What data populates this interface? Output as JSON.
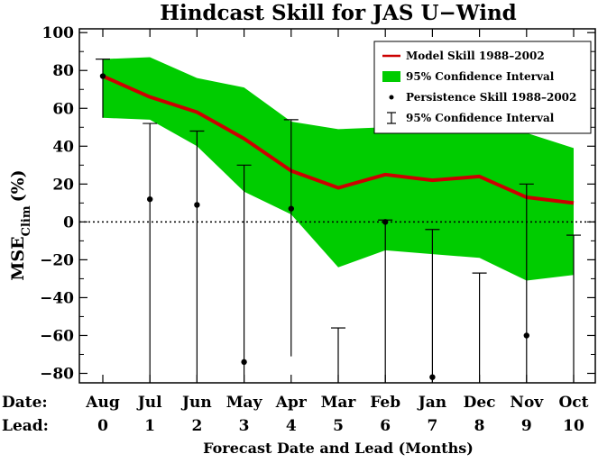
{
  "chart_data": {
    "type": "line",
    "title": "Hindcast Skill for JAS U−Wind",
    "xlabel": "Forecast Date and Lead (Months)",
    "ylabel": "MSE",
    "ylabel_sub": "Clim",
    "ylabel_unit": "(%)",
    "ylim": [
      -85,
      102
    ],
    "yticks": [
      -80,
      -60,
      -40,
      -20,
      0,
      20,
      40,
      60,
      80,
      100
    ],
    "ytick_labels": [
      "−80",
      "−60",
      "−40",
      "−20",
      "0",
      "20",
      "40",
      "60",
      "80",
      "100"
    ],
    "row_labels": {
      "date": "Date:",
      "lead": "Lead:"
    },
    "categories": [
      "Aug",
      "Jul",
      "Jun",
      "May",
      "Apr",
      "Mar",
      "Feb",
      "Jan",
      "Dec",
      "Nov",
      "Oct"
    ],
    "leads": [
      "0",
      "1",
      "2",
      "3",
      "4",
      "5",
      "6",
      "7",
      "8",
      "9",
      "10"
    ],
    "series": [
      {
        "name": "Model Skill 1988–2002",
        "kind": "line",
        "color": "#cc0000",
        "values": [
          77,
          66,
          58,
          44,
          27,
          18,
          25,
          22,
          24,
          13,
          10
        ]
      },
      {
        "name": "95% Confidence Interval",
        "kind": "band",
        "color": "#00cc00",
        "upper": [
          86,
          87,
          76,
          71,
          53,
          49,
          50,
          50,
          50,
          47,
          39
        ],
        "lower": [
          55,
          54,
          40,
          16,
          4,
          -24,
          -15,
          -17,
          -19,
          -31,
          -28
        ]
      },
      {
        "name": "Persistence Skill 1988–2002",
        "kind": "points",
        "color": "#000000",
        "values": [
          77,
          12,
          9,
          -74,
          7,
          null,
          0,
          -82,
          null,
          -60,
          null
        ]
      },
      {
        "name": "95% Confidence Interval",
        "kind": "errorbar",
        "color": "#000000",
        "upper": [
          86,
          52,
          48,
          30,
          54,
          -56,
          1,
          -4,
          -27,
          20,
          -7
        ],
        "lower": [
          55,
          -85,
          -85,
          -85,
          -71,
          -85,
          -85,
          -85,
          -85,
          -85,
          -85
        ]
      }
    ],
    "zero_line": {
      "value": 0,
      "style": "dotted"
    },
    "legend_position": "top-right",
    "grid": false
  }
}
